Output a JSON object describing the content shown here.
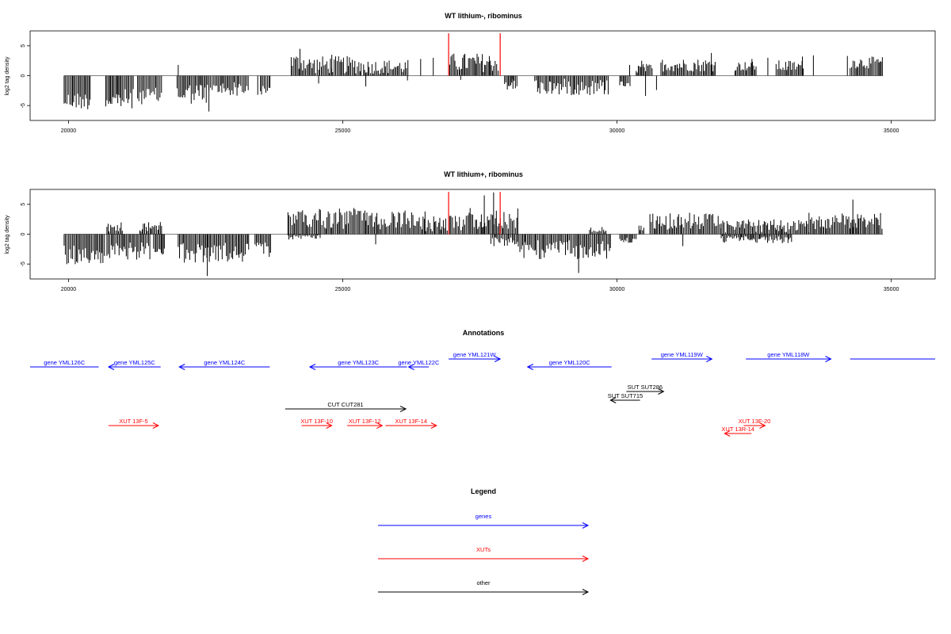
{
  "chart_data": [
    {
      "type": "bar",
      "title": "WT lithium-, ribominus",
      "ylabel": "log2 tag density",
      "xlim": [
        19300,
        35800
      ],
      "ylim": [
        -7.5,
        7.5
      ],
      "xticks": [
        20000,
        25000,
        30000,
        35000
      ],
      "yticks": [
        -5,
        0,
        5
      ],
      "grid": false,
      "series": [
        {
          "segments": [
            {
              "start": 19920,
              "end": 20420,
              "sign": -1,
              "mean": 4.2,
              "amp": 1.5
            },
            {
              "start": 20680,
              "end": 21200,
              "sign": -1,
              "mean": 4.0,
              "amp": 1.8
            },
            {
              "start": 21260,
              "end": 21700,
              "sign": -1,
              "mean": 3.4,
              "amp": 1.4
            },
            {
              "start": 21980,
              "end": 22600,
              "sign": -1,
              "mean": 3.0,
              "amp": 1.8
            },
            {
              "start": 22620,
              "end": 23300,
              "sign": -1,
              "mean": 2.2,
              "amp": 1.2
            },
            {
              "start": 23500,
              "end": 23680,
              "sign": -1,
              "mean": 2.5,
              "amp": 0.8
            },
            {
              "start": 24060,
              "end": 24320,
              "sign": 1,
              "mean": 2.2,
              "amp": 1.5
            },
            {
              "start": 24320,
              "end": 25350,
              "sign": 1,
              "mean": 1.8,
              "amp": 1.5
            },
            {
              "start": 25380,
              "end": 26200,
              "sign": 1,
              "mean": 1.5,
              "amp": 1.2
            },
            {
              "start": 26950,
              "end": 27850,
              "sign": 1,
              "mean": 2.2,
              "amp": 1.6
            },
            {
              "start": 27950,
              "end": 28200,
              "sign": -1,
              "mean": 1.5,
              "amp": 1.0
            },
            {
              "start": 28500,
              "end": 29850,
              "sign": -1,
              "mean": 1.9,
              "amp": 1.4
            },
            {
              "start": 30050,
              "end": 30250,
              "sign": -1,
              "mean": 1.2,
              "amp": 0.7
            },
            {
              "start": 30350,
              "end": 30650,
              "sign": 1,
              "mean": 1.2,
              "amp": 0.8
            },
            {
              "start": 30800,
              "end": 31800,
              "sign": 1,
              "mean": 1.8,
              "amp": 1.1
            },
            {
              "start": 32150,
              "end": 32550,
              "sign": 1,
              "mean": 1.6,
              "amp": 0.8
            },
            {
              "start": 32900,
              "end": 33400,
              "sign": 1,
              "mean": 1.6,
              "amp": 1.0
            },
            {
              "start": 34250,
              "end": 34850,
              "sign": 1,
              "mean": 2.2,
              "amp": 1.0
            }
          ],
          "isolated": [
            {
              "x": 22000,
              "y": 1.8
            },
            {
              "x": 22560,
              "y": -6.0
            },
            {
              "x": 23450,
              "y": -3.2
            },
            {
              "x": 24220,
              "y": 4.5
            },
            {
              "x": 24560,
              "y": -1.3
            },
            {
              "x": 24800,
              "y": 3.5
            },
            {
              "x": 25420,
              "y": -1.8
            },
            {
              "x": 26180,
              "y": -0.8
            },
            {
              "x": 26420,
              "y": 2.8
            },
            {
              "x": 26650,
              "y": 3.0
            },
            {
              "x": 27150,
              "y": -0.7
            },
            {
              "x": 28100,
              "y": -0.6
            },
            {
              "x": 30230,
              "y": 1.8
            },
            {
              "x": 30450,
              "y": 2.5
            },
            {
              "x": 30520,
              "y": -3.4
            },
            {
              "x": 30720,
              "y": -2.4
            },
            {
              "x": 31720,
              "y": 3.8
            },
            {
              "x": 32460,
              "y": 2.8
            },
            {
              "x": 32750,
              "y": 3.0
            },
            {
              "x": 33380,
              "y": 3.2
            },
            {
              "x": 33580,
              "y": 3.4
            },
            {
              "x": 34200,
              "y": 3.3
            }
          ]
        }
      ],
      "markers": [
        26930,
        27870
      ]
    },
    {
      "type": "bar",
      "title": "WT lithium+, ribominus",
      "ylabel": "log2 tag density",
      "xlim": [
        19300,
        35800
      ],
      "ylim": [
        -7.5,
        7.5
      ],
      "xticks": [
        20000,
        25000,
        30000,
        35000
      ],
      "yticks": [
        -5,
        0,
        5
      ],
      "grid": false,
      "series": [
        {
          "segments": [
            {
              "start": 19920,
              "end": 20680,
              "sign": -1,
              "mean": 3.5,
              "amp": 1.6
            },
            {
              "start": 20700,
              "end": 21000,
              "sign": 1,
              "mean": 1.2,
              "amp": 0.8
            },
            {
              "start": 20700,
              "end": 21500,
              "sign": -1,
              "mean": 2.8,
              "amp": 1.5
            },
            {
              "start": 21300,
              "end": 21700,
              "sign": 1,
              "mean": 1.4,
              "amp": 1.0
            },
            {
              "start": 21550,
              "end": 21750,
              "sign": -1,
              "mean": 2.5,
              "amp": 1.0
            },
            {
              "start": 22000,
              "end": 23300,
              "sign": -1,
              "mean": 3.2,
              "amp": 1.8
            },
            {
              "start": 23400,
              "end": 23700,
              "sign": -1,
              "mean": 2.5,
              "amp": 1.2
            },
            {
              "start": 24000,
              "end": 25300,
              "sign": 1,
              "mean": 2.6,
              "amp": 1.8
            },
            {
              "start": 24000,
              "end": 24600,
              "sign": -1,
              "mean": 0.5,
              "amp": 0.4
            },
            {
              "start": 25300,
              "end": 26300,
              "sign": 1,
              "mean": 2.4,
              "amp": 1.6
            },
            {
              "start": 26300,
              "end": 27200,
              "sign": 1,
              "mean": 1.8,
              "amp": 1.3
            },
            {
              "start": 27200,
              "end": 28200,
              "sign": 1,
              "mean": 2.6,
              "amp": 1.8
            },
            {
              "start": 27700,
              "end": 28200,
              "sign": -1,
              "mean": 1.2,
              "amp": 0.8
            },
            {
              "start": 28200,
              "end": 29900,
              "sign": -1,
              "mean": 2.6,
              "amp": 1.6
            },
            {
              "start": 29500,
              "end": 29800,
              "sign": 1,
              "mean": 0.8,
              "amp": 0.6
            },
            {
              "start": 30050,
              "end": 30350,
              "sign": -1,
              "mean": 1.0,
              "amp": 0.6
            },
            {
              "start": 30400,
              "end": 30500,
              "sign": 1,
              "mean": 1.0,
              "amp": 0.5
            },
            {
              "start": 30600,
              "end": 31900,
              "sign": 1,
              "mean": 2.1,
              "amp": 1.5
            },
            {
              "start": 31900,
              "end": 33500,
              "sign": 1,
              "mean": 1.4,
              "amp": 1.1
            },
            {
              "start": 31900,
              "end": 33200,
              "sign": -1,
              "mean": 0.9,
              "amp": 0.6
            },
            {
              "start": 33500,
              "end": 34850,
              "sign": 1,
              "mean": 2.2,
              "amp": 1.4
            }
          ],
          "isolated": [
            {
              "x": 22530,
              "y": -7.0
            },
            {
              "x": 23660,
              "y": -3.8
            },
            {
              "x": 25600,
              "y": -1.7
            },
            {
              "x": 26500,
              "y": 3.8
            },
            {
              "x": 27750,
              "y": 7.0
            },
            {
              "x": 27580,
              "y": 6.5
            },
            {
              "x": 29300,
              "y": -6.5
            },
            {
              "x": 31200,
              "y": -2.0
            },
            {
              "x": 34300,
              "y": 5.8
            }
          ]
        }
      ],
      "markers": [
        26930,
        27870
      ]
    },
    {
      "type": "other",
      "title": "Annotations",
      "xlim": [
        19300,
        35800
      ],
      "features": [
        {
          "label": "gene YML126C",
          "start": 19300,
          "end": 20550,
          "strand": "-",
          "kind": "gene",
          "row": 0,
          "arrow": false
        },
        {
          "label": "gene YML125C",
          "start": 20730,
          "end": 21680,
          "strand": "-",
          "kind": "gene",
          "row": 0
        },
        {
          "label": "gene YML124C",
          "start": 22020,
          "end": 23670,
          "strand": "-",
          "kind": "gene",
          "row": 0
        },
        {
          "label": "gene YML123C",
          "start": 24400,
          "end": 26170,
          "strand": "-",
          "kind": "gene",
          "row": 0
        },
        {
          "label": "gene YML122C",
          "start": 26200,
          "end": 26570,
          "strand": "-",
          "kind": "gene",
          "row": 0
        },
        {
          "label": "gene YML121W",
          "start": 26930,
          "end": 27870,
          "strand": "+",
          "kind": "gene",
          "row": -1
        },
        {
          "label": "gene YML120C",
          "start": 28370,
          "end": 29900,
          "strand": "-",
          "kind": "gene",
          "row": 0
        },
        {
          "label": "gene YML119W",
          "start": 30630,
          "end": 31730,
          "strand": "+",
          "kind": "gene",
          "row": -1
        },
        {
          "label": "gene YML118W",
          "start": 32350,
          "end": 33900,
          "strand": "+",
          "kind": "gene",
          "row": -1
        },
        {
          "label": "",
          "start": 34250,
          "end": 35800,
          "strand": "+",
          "kind": "gene",
          "row": -1,
          "arrow": false
        },
        {
          "label": "SUT SUT286",
          "start": 30170,
          "end": 30850,
          "strand": "+",
          "kind": "other",
          "row": 2
        },
        {
          "label": "SUT SUT715",
          "start": 29880,
          "end": 30420,
          "strand": "-",
          "kind": "other",
          "row": 3
        },
        {
          "label": "CUT CUT281",
          "start": 23950,
          "end": 26150,
          "strand": "+",
          "kind": "other",
          "row": 4
        },
        {
          "label": "XUT 13F-5",
          "start": 20730,
          "end": 21640,
          "strand": "+",
          "kind": "xut",
          "row": 5
        },
        {
          "label": "XUT 13F-10",
          "start": 24250,
          "end": 24800,
          "strand": "+",
          "kind": "xut",
          "row": 5
        },
        {
          "label": "XUT 13F-12",
          "start": 25080,
          "end": 25720,
          "strand": "+",
          "kind": "xut",
          "row": 5
        },
        {
          "label": "XUT 13F-14",
          "start": 25780,
          "end": 26710,
          "strand": "+",
          "kind": "xut",
          "row": 5
        },
        {
          "label": "XUT 13F-20",
          "start": 32310,
          "end": 32700,
          "strand": "+",
          "kind": "xut",
          "row": 5
        },
        {
          "label": "XUT 13R-14",
          "start": 31960,
          "end": 32450,
          "strand": "-",
          "kind": "xut",
          "row": 6
        }
      ]
    },
    {
      "type": "other",
      "title": "Legend",
      "entries": [
        {
          "label": "genes",
          "color": "#0000ff"
        },
        {
          "label": "XUTs",
          "color": "#ff0000"
        },
        {
          "label": "other",
          "color": "#000000"
        }
      ]
    }
  ],
  "colors": {
    "gene": "#0000ff",
    "xut": "#ff0000",
    "other": "#000000",
    "marker": "#ff0000",
    "bar": "#000000"
  }
}
